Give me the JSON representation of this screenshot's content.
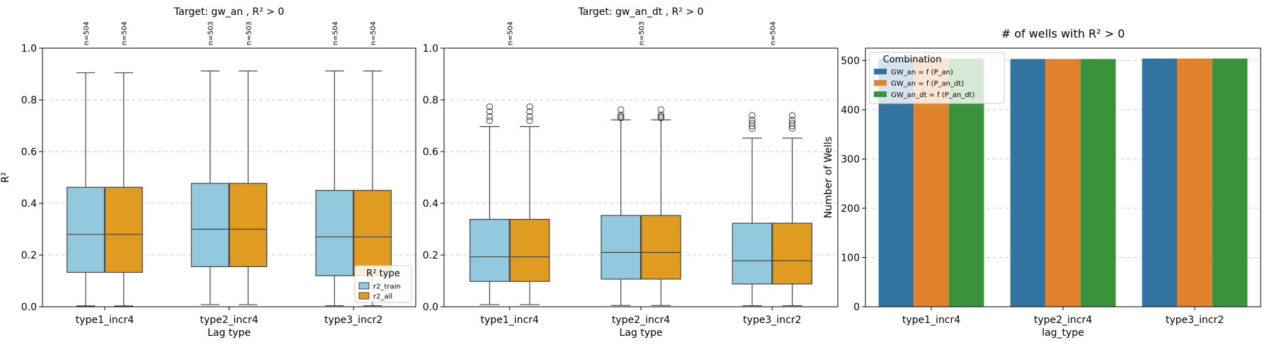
{
  "chart_data": [
    {
      "type": "box",
      "title": "Target: gw_an , R² > 0",
      "xlabel": "Lag type",
      "ylabel": "R²",
      "ylim": [
        0,
        1.0
      ],
      "yticks": [
        "0.0",
        "0.2",
        "0.4",
        "0.6",
        "0.8",
        "1.0"
      ],
      "grid": "y, dashed",
      "categories": [
        "type1_incr4",
        "type2_incr4",
        "type3_incr2"
      ],
      "counts": [
        "n=504",
        "n=504",
        "n=503",
        "n=503",
        "n=504",
        "n=504"
      ],
      "legend": {
        "title": "R² type",
        "position": "lower-right"
      },
      "series": [
        {
          "name": "r2_train",
          "color": "#92c9df",
          "boxes": [
            {
              "min": 0.003,
              "q1": 0.133,
              "median": 0.28,
              "q3": 0.462,
              "max": 0.905,
              "outliers": []
            },
            {
              "min": 0.008,
              "q1": 0.155,
              "median": 0.3,
              "q3": 0.477,
              "max": 0.912,
              "outliers": []
            },
            {
              "min": 0.004,
              "q1": 0.12,
              "median": 0.27,
              "q3": 0.45,
              "max": 0.912,
              "outliers": []
            }
          ]
        },
        {
          "name": "r2_all",
          "color": "#e09c20",
          "boxes": [
            {
              "min": 0.003,
              "q1": 0.133,
              "median": 0.28,
              "q3": 0.462,
              "max": 0.905,
              "outliers": []
            },
            {
              "min": 0.008,
              "q1": 0.155,
              "median": 0.3,
              "q3": 0.477,
              "max": 0.912,
              "outliers": []
            },
            {
              "min": 0.004,
              "q1": 0.12,
              "median": 0.27,
              "q3": 0.45,
              "max": 0.912,
              "outliers": []
            }
          ]
        }
      ]
    },
    {
      "type": "box",
      "title": "Target: gw_an_dt , R² > 0",
      "xlabel": "Lag type",
      "ylabel": "",
      "ylim": [
        0,
        1.0
      ],
      "yticks": [
        "0.0",
        "0.2",
        "0.4",
        "0.6",
        "0.8",
        "1.0"
      ],
      "grid": "y, dashed",
      "categories": [
        "type1_incr4",
        "type2_incr4",
        "type3_incr2"
      ],
      "counts": [
        "n=504",
        "n=503",
        "n=504"
      ],
      "series": [
        {
          "name": "r2_train",
          "color": "#92c9df",
          "boxes": [
            {
              "min": 0.008,
              "q1": 0.098,
              "median": 0.193,
              "q3": 0.338,
              "max": 0.697,
              "outliers": [
                0.72,
                0.735,
                0.755,
                0.773
              ]
            },
            {
              "min": 0.005,
              "q1": 0.107,
              "median": 0.21,
              "q3": 0.353,
              "max": 0.723,
              "outliers": [
                0.73,
                0.735,
                0.742,
                0.762
              ]
            },
            {
              "min": 0.004,
              "q1": 0.088,
              "median": 0.178,
              "q3": 0.323,
              "max": 0.652,
              "outliers": [
                0.69,
                0.7,
                0.71,
                0.722,
                0.74
              ]
            }
          ]
        },
        {
          "name": "r2_all",
          "color": "#e09c20",
          "boxes": [
            {
              "min": 0.008,
              "q1": 0.098,
              "median": 0.193,
              "q3": 0.338,
              "max": 0.697,
              "outliers": [
                0.72,
                0.735,
                0.755,
                0.773
              ]
            },
            {
              "min": 0.005,
              "q1": 0.107,
              "median": 0.21,
              "q3": 0.353,
              "max": 0.723,
              "outliers": [
                0.73,
                0.735,
                0.742,
                0.762
              ]
            },
            {
              "min": 0.004,
              "q1": 0.088,
              "median": 0.178,
              "q3": 0.323,
              "max": 0.652,
              "outliers": [
                0.69,
                0.7,
                0.71,
                0.722,
                0.74
              ]
            }
          ]
        }
      ]
    },
    {
      "type": "bar",
      "title": "# of wells with R² > 0",
      "xlabel": "lag_type",
      "ylabel": "Number of Wells",
      "ylim": [
        0,
        525
      ],
      "yticks": [
        "0",
        "100",
        "200",
        "300",
        "400",
        "500"
      ],
      "grid": "y, dashed",
      "categories": [
        "type1_incr4",
        "type2_incr4",
        "type3_incr2"
      ],
      "legend": {
        "title": "Combination",
        "position": "top-left"
      },
      "series": [
        {
          "name": "GW_an = f (P_an)",
          "color": "#3274a1",
          "values": [
            504,
            503,
            504
          ]
        },
        {
          "name": "GW_an = f (P_an_dt)",
          "color": "#e1812c",
          "values": [
            504,
            503,
            504
          ]
        },
        {
          "name": "GW_an_dt = f (P_an_dt)",
          "color": "#3a923a",
          "values": [
            504,
            503,
            504
          ]
        }
      ]
    }
  ]
}
